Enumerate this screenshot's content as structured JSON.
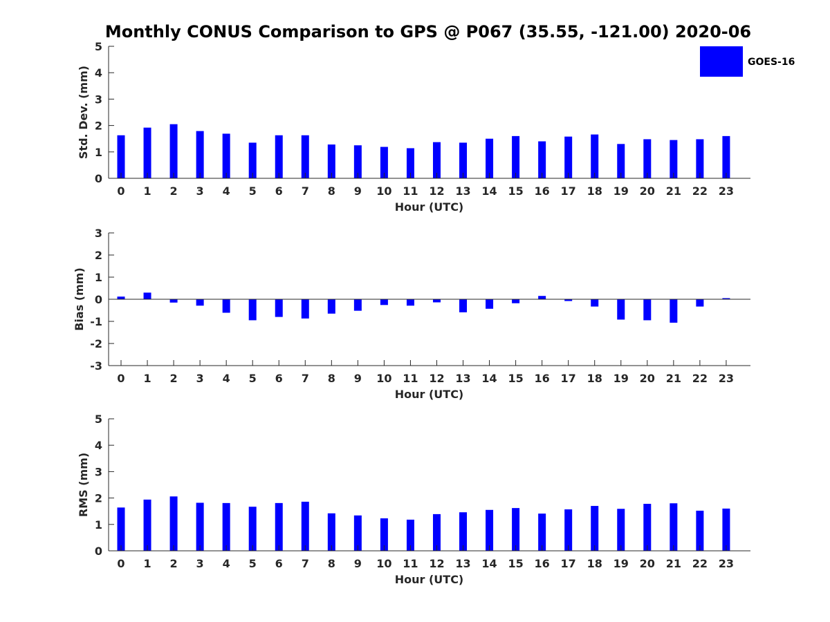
{
  "title": "Monthly CONUS Comparison to GPS @ P067 (35.55, -121.00) 2020-06",
  "legend": {
    "label": "GOES-16",
    "color": "#0000FF",
    "placement": "top-right"
  },
  "colors": {
    "bar": "#0000FF",
    "axis": "#262626",
    "background": "#FFFFFF"
  },
  "chart_data": [
    {
      "type": "bar",
      "title": "Monthly CONUS Comparison to GPS @ P067 (35.55, -121.00) 2020-06",
      "xlabel": "Hour (UTC)",
      "ylabel": "Std. Dev. (mm)",
      "ylim": [
        0,
        5
      ],
      "yticks": [
        0,
        1,
        2,
        3,
        4,
        5
      ],
      "categories": [
        "0",
        "1",
        "2",
        "3",
        "4",
        "5",
        "6",
        "7",
        "8",
        "9",
        "10",
        "11",
        "12",
        "13",
        "14",
        "15",
        "16",
        "17",
        "18",
        "19",
        "20",
        "21",
        "22",
        "23"
      ],
      "series": [
        {
          "name": "GOES-16",
          "values": [
            1.63,
            1.92,
            2.05,
            1.79,
            1.69,
            1.35,
            1.63,
            1.63,
            1.28,
            1.25,
            1.19,
            1.14,
            1.37,
            1.35,
            1.5,
            1.6,
            1.4,
            1.58,
            1.66,
            1.3,
            1.48,
            1.45,
            1.48,
            1.6
          ]
        }
      ],
      "grid": false
    },
    {
      "type": "bar",
      "xlabel": "Hour (UTC)",
      "ylabel": "Bias (mm)",
      "ylim": [
        -3,
        3
      ],
      "yticks": [
        -3,
        -2,
        -1,
        0,
        1,
        2,
        3
      ],
      "categories": [
        "0",
        "1",
        "2",
        "3",
        "4",
        "5",
        "6",
        "7",
        "8",
        "9",
        "10",
        "11",
        "12",
        "13",
        "14",
        "15",
        "16",
        "17",
        "18",
        "19",
        "20",
        "21",
        "22",
        "23"
      ],
      "series": [
        {
          "name": "GOES-16",
          "values": [
            0.12,
            0.3,
            -0.15,
            -0.29,
            -0.61,
            -0.95,
            -0.8,
            -0.87,
            -0.65,
            -0.52,
            -0.26,
            -0.29,
            -0.14,
            -0.59,
            -0.43,
            -0.18,
            0.15,
            -0.08,
            -0.33,
            -0.92,
            -0.95,
            -1.06,
            -0.33,
            0.05
          ]
        }
      ],
      "grid": false
    },
    {
      "type": "bar",
      "xlabel": "Hour (UTC)",
      "ylabel": "RMS (mm)",
      "ylim": [
        0,
        5
      ],
      "yticks": [
        0,
        1,
        2,
        3,
        4,
        5
      ],
      "categories": [
        "0",
        "1",
        "2",
        "3",
        "4",
        "5",
        "6",
        "7",
        "8",
        "9",
        "10",
        "11",
        "12",
        "13",
        "14",
        "15",
        "16",
        "17",
        "18",
        "19",
        "20",
        "21",
        "22",
        "23"
      ],
      "series": [
        {
          "name": "GOES-16",
          "values": [
            1.64,
            1.94,
            2.06,
            1.82,
            1.81,
            1.67,
            1.81,
            1.86,
            1.42,
            1.34,
            1.23,
            1.18,
            1.39,
            1.46,
            1.55,
            1.62,
            1.41,
            1.57,
            1.7,
            1.59,
            1.78,
            1.8,
            1.52,
            1.6
          ]
        }
      ],
      "grid": false
    }
  ]
}
